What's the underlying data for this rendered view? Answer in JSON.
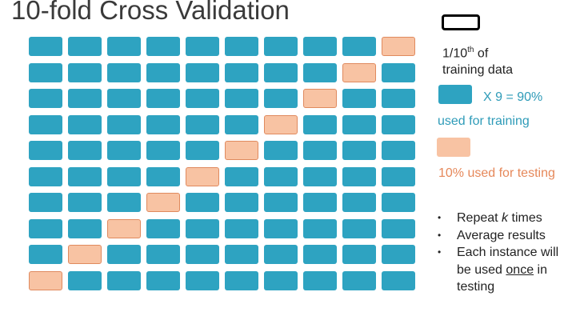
{
  "title": "10-fold Cross Validation",
  "chart_data": {
    "type": "diagram",
    "folds": 10,
    "rows": 10,
    "test_fold_by_row": [
      9,
      8,
      7,
      6,
      5,
      4,
      3,
      2,
      1,
      0
    ]
  },
  "legend": {
    "fold_label_prefix": "1/10",
    "fold_label_sup": "th",
    "fold_label_suffix": " of",
    "fold_label_line2": "training data",
    "train_multiplier": "X 9 = 90%",
    "train_label": "used for training",
    "test_label": "10% used for testing"
  },
  "colors": {
    "train": "#2ea3c1",
    "test": "#f8c3a3"
  },
  "bullets": {
    "b1_pre": "Repeat ",
    "b1_em": "k",
    "b1_post": " times",
    "b2": "Average results",
    "b3_pre": "Each instance will be used ",
    "b3_u": "once",
    "b3_post": " in testing"
  }
}
